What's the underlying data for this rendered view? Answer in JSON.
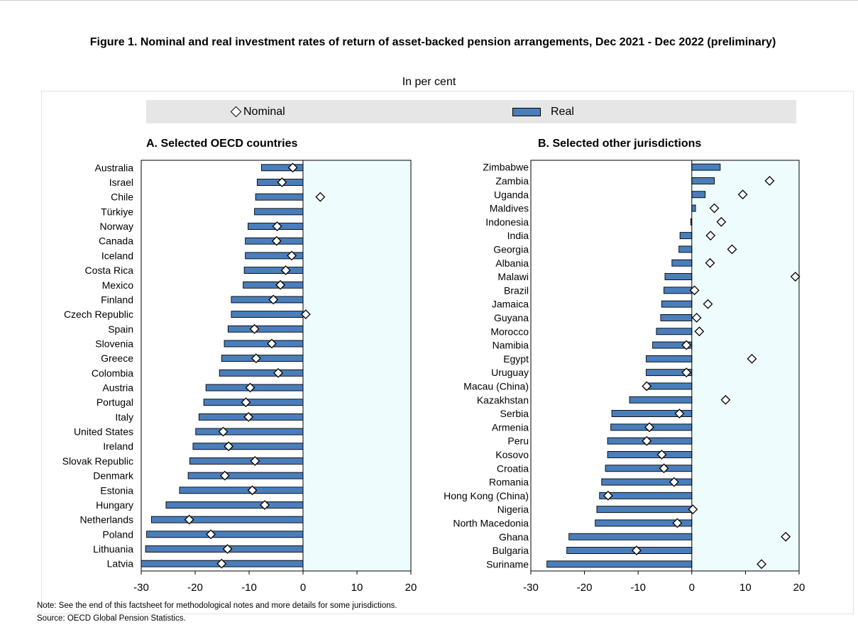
{
  "title": "Figure 1. Nominal and real investment rates of return of asset-backed pension arrangements, Dec 2021 - Dec 2022 (preliminary)",
  "subtitle": "In per cent",
  "legend": {
    "nominal": "Nominal",
    "real": "Real"
  },
  "note": "Note: See the end of this factsheet for methodological notes and more details for some jurisdictions.",
  "source": "Source: OECD Global Pension Statistics.",
  "colors": {
    "bar": "#4a7ebb",
    "plot_bg": "#eefcfe",
    "marker": "#ffffff"
  },
  "chart_data": [
    {
      "type": "bar",
      "orientation": "horizontal",
      "title": "A. Selected OECD countries",
      "xlim": [
        -30,
        20
      ],
      "xticks": [
        -30,
        -20,
        -10,
        0,
        10,
        20
      ],
      "categories": [
        "Australia",
        "Israel",
        "Chile",
        "Türkiye",
        "Norway",
        "Canada",
        "Iceland",
        "Costa Rica",
        "Mexico",
        "Finland",
        "Czech Republic",
        "Spain",
        "Slovenia",
        "Greece",
        "Colombia",
        "Austria",
        "Portugal",
        "Italy",
        "United States",
        "Ireland",
        "Slovak Republic",
        "Denmark",
        "Estonia",
        "Hungary",
        "Netherlands",
        "Poland",
        "Lithuania",
        "Latvia"
      ],
      "series": [
        {
          "name": "Real",
          "values": [
            -7.7,
            -8.5,
            -8.8,
            -9.0,
            -10.2,
            -10.7,
            -10.7,
            -10.9,
            -11.1,
            -13.3,
            -13.3,
            -13.9,
            -14.6,
            -15.1,
            -15.5,
            -18.0,
            -18.4,
            -19.3,
            -19.9,
            -20.4,
            -21.0,
            -21.3,
            -22.9,
            -25.4,
            -28.1,
            -29.0,
            -29.2,
            -30.0
          ]
        },
        {
          "name": "Nominal",
          "values": [
            -1.9,
            -3.9,
            3.2,
            null,
            -4.8,
            -4.9,
            -2.1,
            -3.2,
            -4.2,
            -5.5,
            0.5,
            -9.0,
            -5.8,
            -8.7,
            -4.6,
            -9.8,
            -10.6,
            -10.1,
            -14.8,
            -13.8,
            -8.9,
            -14.5,
            -9.4,
            -7.1,
            -21.1,
            -17.1,
            -14.0,
            -15.1
          ]
        }
      ]
    },
    {
      "type": "bar",
      "orientation": "horizontal",
      "title": "B. Selected other jurisdictions",
      "xlim": [
        -30,
        20
      ],
      "xticks": [
        -30,
        -20,
        -10,
        0,
        10,
        20
      ],
      "categories": [
        "Zimbabwe",
        "Zambia",
        "Uganda",
        "Maldives",
        "Indonesia",
        "India",
        "Georgia",
        "Albania",
        "Malawi",
        "Brazil",
        "Jamaica",
        "Guyana",
        "Morocco",
        "Namibia",
        "Egypt",
        "Uruguay",
        "Macau (China)",
        "Kazakhstan",
        "Serbia",
        "Armenia",
        "Peru",
        "Kosovo",
        "Croatia",
        "Romania",
        "Hong Kong (China)",
        "Nigeria",
        "North Macedonia",
        "Ghana",
        "Bulgaria",
        "Suriname"
      ],
      "series": [
        {
          "name": "Real",
          "values": [
            5.3,
            4.2,
            2.5,
            0.7,
            -0.2,
            -2.2,
            -2.4,
            -3.7,
            -5.0,
            -5.2,
            -5.6,
            -5.8,
            -6.6,
            -7.3,
            -8.5,
            -8.5,
            -8.7,
            -11.6,
            -14.9,
            -15.1,
            -15.7,
            -15.7,
            -16.1,
            -16.8,
            -17.2,
            -17.7,
            -18.0,
            -22.9,
            -23.3,
            -27.0
          ]
        },
        {
          "name": "Nominal",
          "values": [
            null,
            14.5,
            9.5,
            4.2,
            5.5,
            3.5,
            7.5,
            3.4,
            19.3,
            0.5,
            3.0,
            0.9,
            1.4,
            -1.0,
            11.2,
            -1.0,
            -8.4,
            6.3,
            -2.3,
            -7.9,
            -8.4,
            -5.6,
            -5.2,
            -3.3,
            -15.6,
            0.2,
            -2.7,
            17.5,
            -10.3,
            13.0
          ]
        }
      ]
    }
  ]
}
